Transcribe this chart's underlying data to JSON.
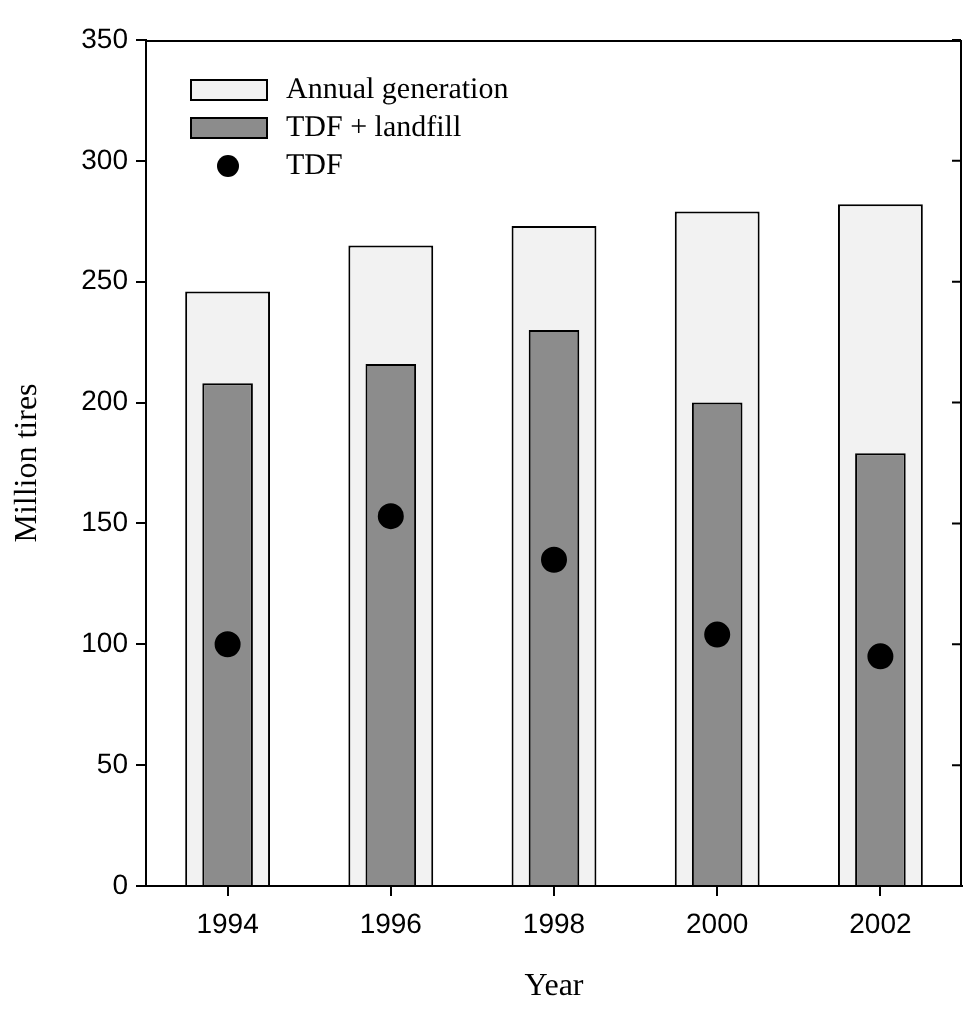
{
  "chart_data": {
    "type": "bar",
    "xlabel": "Year",
    "ylabel": "Million tires",
    "categories": [
      "1994",
      "1996",
      "1998",
      "2000",
      "2002"
    ],
    "series": [
      {
        "name": "Annual generation",
        "color": "#f2f2f2",
        "values": [
          246,
          265,
          273,
          279,
          282
        ]
      },
      {
        "name": "TDF + landfill",
        "color": "#8c8c8c",
        "values": [
          208,
          216,
          230,
          200,
          179
        ]
      },
      {
        "name": "TDF",
        "type": "scatter",
        "color": "#000000",
        "marker": "circle",
        "values": [
          100,
          153,
          135,
          104,
          95
        ]
      }
    ],
    "ylim": [
      0,
      350
    ],
    "yticks": [
      0,
      50,
      100,
      150,
      200,
      250,
      300,
      350
    ],
    "grid": false,
    "legend": "top left"
  }
}
